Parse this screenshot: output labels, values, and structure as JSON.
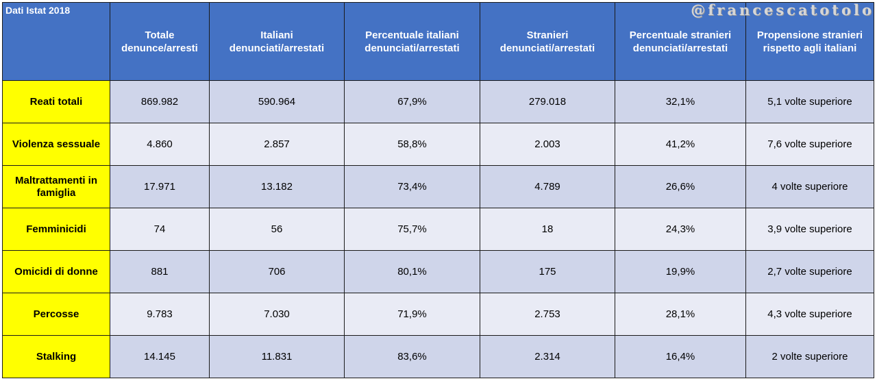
{
  "watermark": "@francescatotolo",
  "table": {
    "corner": "Dati Istat 2018",
    "headers": [
      {
        "line1": "Totale",
        "line2": "denunce/arresti"
      },
      {
        "line1": "Italiani",
        "line2": "denunciati/arrestati"
      },
      {
        "line1": "Percentuale italiani",
        "line2": "denunciati/arrestati"
      },
      {
        "line1": "Stranieri",
        "line2": "denunciati/arrestati"
      },
      {
        "line1": "Percentuale stranieri",
        "line2": "denunciati/arrestati"
      },
      {
        "line1": "Propensione stranieri",
        "line2": "rispetto agli italiani"
      }
    ],
    "rows": [
      {
        "label": "Reati totali",
        "label2": "",
        "totale": "869.982",
        "italiani": "590.964",
        "perc_italiani": "67,9%",
        "stranieri": "279.018",
        "perc_stranieri": "32,1%",
        "propensione": "5,1 volte superiore"
      },
      {
        "label": "Violenza sessuale",
        "label2": "",
        "totale": "4.860",
        "italiani": "2.857",
        "perc_italiani": "58,8%",
        "stranieri": "2.003",
        "perc_stranieri": "41,2%",
        "propensione": "7,6 volte superiore"
      },
      {
        "label": "Maltrattamenti in",
        "label2": "famiglia",
        "totale": "17.971",
        "italiani": "13.182",
        "perc_italiani": "73,4%",
        "stranieri": "4.789",
        "perc_stranieri": "26,6%",
        "propensione": "4 volte superiore"
      },
      {
        "label": "Femminicidi",
        "label2": "",
        "totale": "74",
        "italiani": "56",
        "perc_italiani": "75,7%",
        "stranieri": "18",
        "perc_stranieri": "24,3%",
        "propensione": "3,9 volte superiore"
      },
      {
        "label": "Omicidi di donne",
        "label2": "",
        "totale": "881",
        "italiani": "706",
        "perc_italiani": "80,1%",
        "stranieri": "175",
        "perc_stranieri": "19,9%",
        "propensione": "2,7 volte superiore"
      },
      {
        "label": "Percosse",
        "label2": "",
        "totale": "9.783",
        "italiani": "7.030",
        "perc_italiani": "71,9%",
        "stranieri": "2.753",
        "perc_stranieri": "28,1%",
        "propensione": "4,3 volte superiore"
      },
      {
        "label": "Stalking",
        "label2": "",
        "totale": "14.145",
        "italiani": "11.831",
        "perc_italiani": "83,6%",
        "stranieri": "2.314",
        "perc_stranieri": "16,4%",
        "propensione": "2 volte superiore"
      }
    ]
  },
  "colors": {
    "header_bg": "#4472c4",
    "rowhead_bg": "#ffff00",
    "band_dark": "#cfd5ea",
    "band_light": "#e9ebf5"
  }
}
